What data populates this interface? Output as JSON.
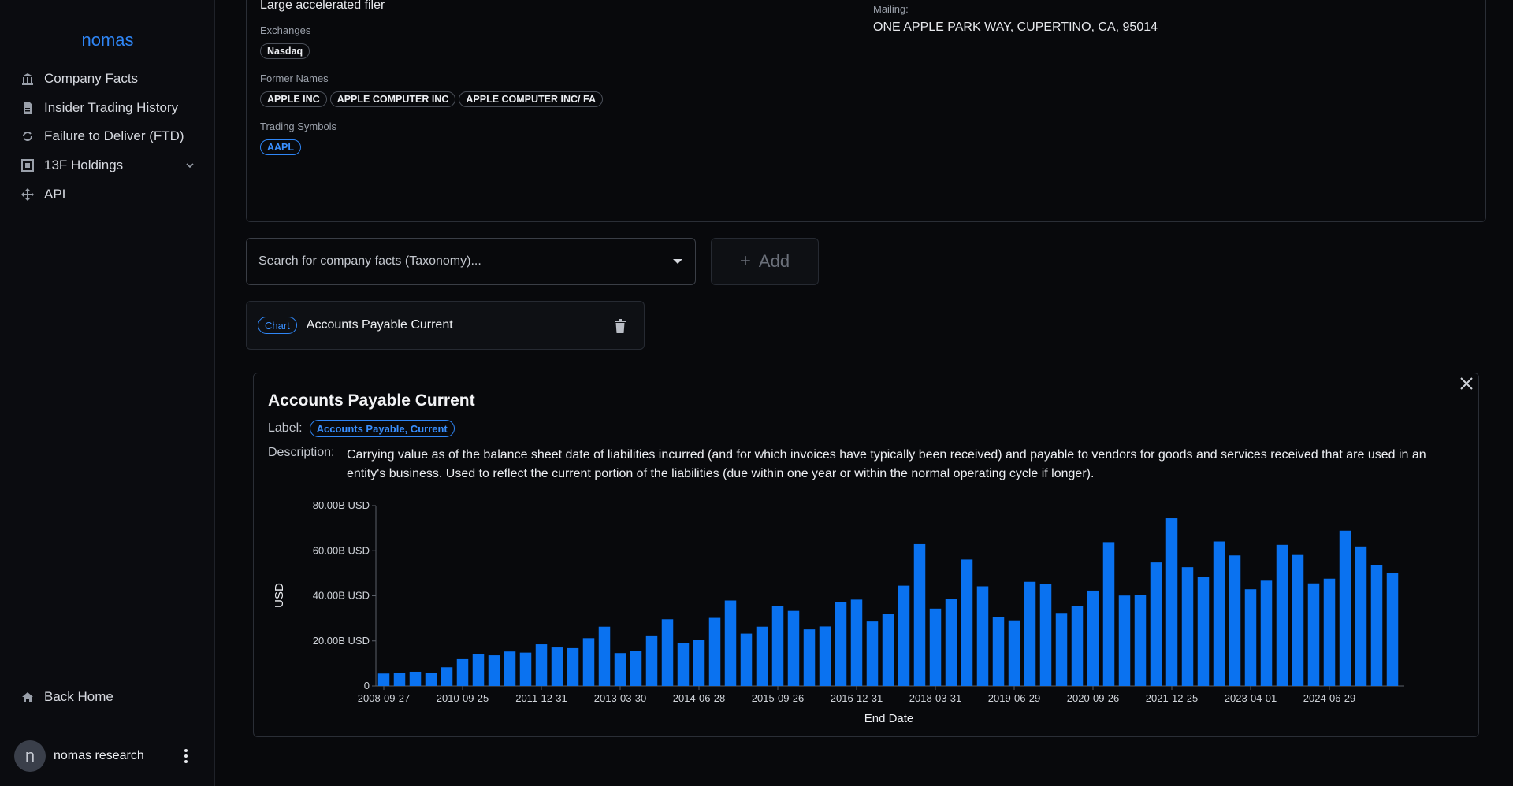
{
  "sidebar": {
    "brand": "nomas",
    "items": [
      {
        "label": "Company Facts",
        "icon": "bank-icon"
      },
      {
        "label": "Insider Trading History",
        "icon": "document-icon"
      },
      {
        "label": "Failure to Deliver (FTD)",
        "icon": "refresh-icon"
      },
      {
        "label": "13F Holdings",
        "icon": "frame-icon"
      },
      {
        "label": "API",
        "icon": "move-icon"
      }
    ],
    "back_home": "Back Home",
    "user": {
      "initial": "n",
      "name": "nomas research"
    }
  },
  "company": {
    "filer_category": "Large accelerated filer",
    "exchanges_label": "Exchanges",
    "exchanges": [
      "Nasdaq"
    ],
    "former_names_label": "Former Names",
    "former_names": [
      "APPLE INC",
      "APPLE COMPUTER INC",
      "APPLE COMPUTER INC/ FA"
    ],
    "trading_symbols_label": "Trading Symbols",
    "trading_symbols": [
      "AAPL"
    ],
    "mailing_label": "Mailing:",
    "mailing_address": "ONE APPLE PARK WAY, CUPERTINO, CA, 95014"
  },
  "search": {
    "placeholder": "Search for company facts (Taxonomy)..."
  },
  "add_button": {
    "label": "Add"
  },
  "selected_fact": {
    "badge": "Chart",
    "title": "Accounts Payable Current"
  },
  "panel": {
    "title": "Accounts Payable Current",
    "label_key": "Label:",
    "label_value": "Accounts Payable, Current",
    "description_key": "Description:",
    "description": "Carrying value as of the balance sheet date of liabilities incurred (and for which invoices have typically been received) and payable to vendors for goods and services received that are used in an entity's business. Used to reflect the current portion of the liabilities (due within one year or within the normal operating cycle if longer)."
  },
  "colors": {
    "accent": "#2f86f6",
    "bar": "#0a72f0",
    "background": "#08090c"
  },
  "chart_data": {
    "type": "bar",
    "xlabel": "End Date",
    "ylabel": "USD",
    "ylim": [
      0,
      80
    ],
    "y_unit": "B USD",
    "y_ticks": [
      "0",
      "20.00B USD",
      "40.00B USD",
      "60.00B USD",
      "80.00B USD"
    ],
    "x_tick_labels": [
      "2008-09-27",
      "2010-09-25",
      "2011-12-31",
      "2013-03-30",
      "2014-06-28",
      "2015-09-26",
      "2016-12-31",
      "2018-03-31",
      "2019-06-29",
      "2020-09-26",
      "2021-12-25",
      "2023-04-01",
      "2024-06-29"
    ],
    "x_tick_indices": [
      0,
      5,
      10,
      15,
      20,
      25,
      30,
      35,
      40,
      45,
      50,
      55,
      60
    ],
    "values": [
      5.5,
      5.6,
      6.3,
      5.6,
      8.3,
      11.9,
      14.3,
      13.6,
      15.3,
      14.8,
      18.5,
      17.1,
      16.8,
      21.2,
      26.3,
      14.6,
      15.5,
      22.4,
      29.6,
      18.9,
      20.6,
      30.2,
      37.9,
      23.2,
      26.3,
      35.5,
      33.3,
      25.1,
      26.4,
      37.1,
      38.3,
      28.6,
      32.0,
      44.5,
      62.9,
      34.3,
      38.5,
      56.1,
      44.2,
      30.4,
      29.1,
      46.2,
      45.1,
      32.4,
      35.3,
      42.3,
      63.8,
      40.1,
      40.4,
      54.8,
      74.4,
      52.7,
      48.3,
      64.1,
      57.9,
      42.9,
      46.7,
      62.6,
      58.1,
      45.5,
      47.6,
      68.9,
      61.9,
      53.8,
      50.3
    ]
  }
}
